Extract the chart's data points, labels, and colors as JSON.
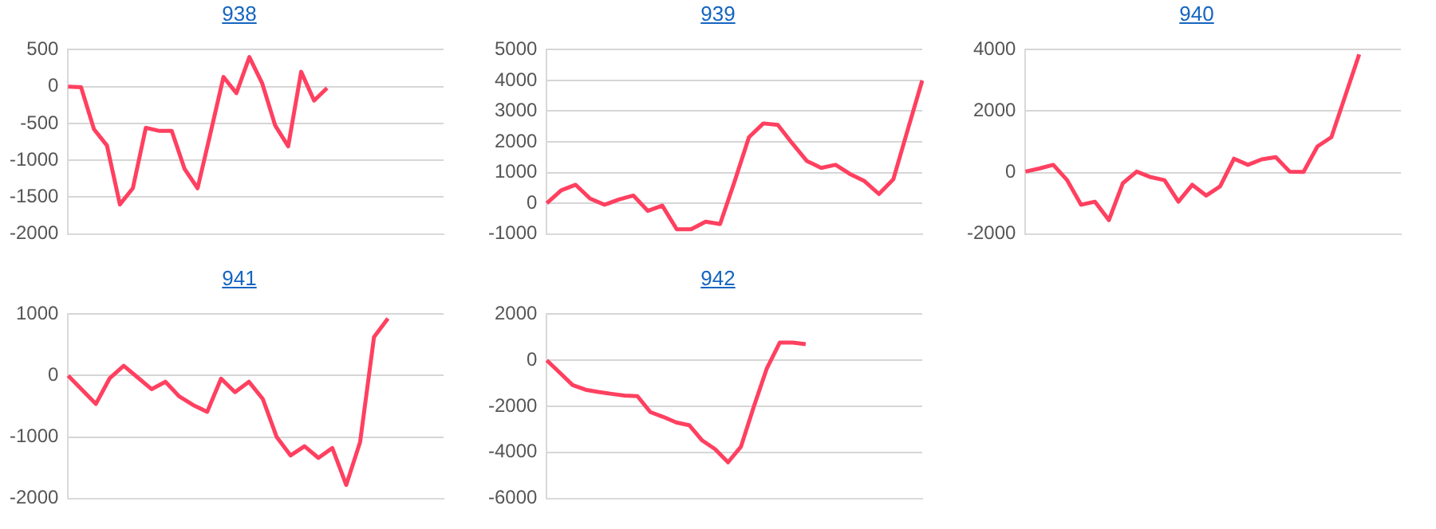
{
  "chart_data": [
    {
      "type": "line",
      "title": "938",
      "categories": [
        null,
        null,
        null,
        null,
        null,
        null,
        null,
        null,
        null,
        null,
        null,
        null,
        null,
        null,
        null,
        null,
        null,
        null,
        null,
        null,
        null,
        null,
        null,
        null,
        null,
        null,
        null,
        null,
        null,
        null
      ],
      "values": [
        0,
        -10,
        -580,
        -800,
        -1600,
        -1380,
        -560,
        -600,
        -600,
        -1120,
        -1380,
        -630,
        130,
        -90,
        400,
        40,
        -530,
        -810,
        200,
        -190,
        -20,
        null,
        null,
        null,
        null,
        null,
        null,
        null,
        null,
        null
      ],
      "color": "#ff4060",
      "ylim": [
        -2000,
        500
      ],
      "yticks": [
        -2000,
        -1500,
        -1000,
        -500,
        0,
        500
      ],
      "grid": "y",
      "tick_labels": "y"
    },
    {
      "type": "line",
      "title": "939",
      "categories": [
        null,
        null,
        null,
        null,
        null,
        null,
        null,
        null,
        null,
        null,
        null,
        null,
        null,
        null,
        null,
        null,
        null,
        null,
        null,
        null,
        null,
        null,
        null,
        null,
        null,
        null,
        null
      ],
      "values": [
        0,
        420,
        600,
        150,
        -50,
        120,
        250,
        -250,
        -80,
        -850,
        -850,
        -600,
        -680,
        700,
        2150,
        2600,
        2550,
        1950,
        1380,
        1150,
        1250,
        950,
        720,
        300,
        780,
        2400,
        4000
      ],
      "color": "#ff4060",
      "ylim": [
        -1000,
        5000
      ],
      "yticks": [
        -1000,
        0,
        1000,
        2000,
        3000,
        4000,
        5000
      ],
      "grid": "y",
      "tick_labels": "y"
    },
    {
      "type": "line",
      "title": "940",
      "categories": [
        null,
        null,
        null,
        null,
        null,
        null,
        null,
        null,
        null,
        null,
        null,
        null,
        null,
        null,
        null,
        null,
        null,
        null,
        null,
        null,
        null,
        null,
        null,
        null,
        null,
        null,
        null,
        null
      ],
      "values": [
        30,
        130,
        250,
        -250,
        -1050,
        -950,
        -1550,
        -350,
        30,
        -150,
        -250,
        -950,
        -400,
        -750,
        -450,
        450,
        250,
        430,
        500,
        30,
        20,
        850,
        1150,
        2500,
        3850,
        null,
        null,
        null
      ],
      "color": "#ff4060",
      "ylim": [
        -2000,
        4000
      ],
      "yticks": [
        -2000,
        0,
        2000,
        4000
      ],
      "grid": "y",
      "tick_labels": "y"
    },
    {
      "type": "line",
      "title": "941",
      "categories": [
        null,
        null,
        null,
        null,
        null,
        null,
        null,
        null,
        null,
        null,
        null,
        null,
        null,
        null,
        null,
        null,
        null,
        null,
        null,
        null,
        null,
        null,
        null,
        null,
        null,
        null,
        null,
        null
      ],
      "values": [
        0,
        -230,
        -460,
        -40,
        160,
        -30,
        -220,
        -100,
        -340,
        -480,
        -590,
        -50,
        -270,
        -100,
        -380,
        -1000,
        -1300,
        -1150,
        -1340,
        -1180,
        -1780,
        -1080,
        630,
        930,
        null,
        null,
        null,
        null
      ],
      "color": "#ff4060",
      "ylim": [
        -2000,
        1000
      ],
      "yticks": [
        -2000,
        -1000,
        0,
        1000
      ],
      "grid": "y",
      "tick_labels": "y"
    },
    {
      "type": "line",
      "title": "942",
      "categories": [
        null,
        null,
        null,
        null,
        null,
        null,
        null,
        null,
        null,
        null,
        null,
        null,
        null,
        null,
        null,
        null,
        null,
        null,
        null,
        null,
        null,
        null,
        null,
        null,
        null,
        null,
        null,
        null,
        null,
        null
      ],
      "values": [
        0,
        -540,
        -1080,
        -1280,
        -1380,
        -1460,
        -1530,
        -1560,
        -2250,
        -2460,
        -2700,
        -2820,
        -3480,
        -3860,
        -4430,
        -3750,
        -2000,
        -350,
        770,
        770,
        700,
        null,
        null,
        null,
        null,
        null,
        null,
        null,
        null,
        null
      ],
      "color": "#ff4060",
      "ylim": [
        -6000,
        2000
      ],
      "yticks": [
        -6000,
        -4000,
        -2000,
        0,
        2000
      ],
      "grid": "y",
      "tick_labels": "y"
    }
  ]
}
